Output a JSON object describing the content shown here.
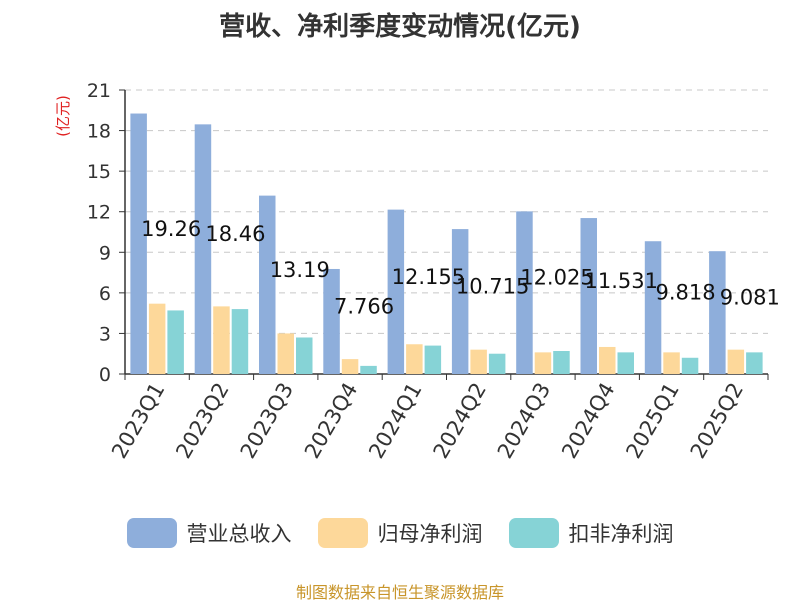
{
  "chart_data": {
    "type": "bar",
    "title": "营收、净利季度变动情况(亿元)",
    "ylabel": "(亿元)",
    "ylim": [
      0,
      21
    ],
    "yticks": [
      0,
      3,
      6,
      9,
      12,
      15,
      18,
      21
    ],
    "grid": true,
    "legend_position": "bottom",
    "categories": [
      "2023Q1",
      "2023Q2",
      "2023Q3",
      "2023Q4",
      "2024Q1",
      "2024Q2",
      "2024Q3",
      "2024Q4",
      "2025Q1",
      "2025Q2"
    ],
    "series": [
      {
        "name": "营业总收入",
        "color": "#8eaedb",
        "values": [
          19.26,
          18.46,
          13.19,
          7.766,
          12.155,
          10.715,
          12.025,
          11.531,
          9.818,
          9.081
        ],
        "labels": [
          "19.26",
          "18.46",
          "13.19",
          "7.766",
          "12.155",
          "10.715",
          "12.025",
          "11.531",
          "9.818",
          "9.081"
        ]
      },
      {
        "name": "归母净利润",
        "color": "#fdd89a",
        "values": [
          5.2,
          5.0,
          3.0,
          1.1,
          2.2,
          1.8,
          1.6,
          2.0,
          1.6,
          1.8
        ]
      },
      {
        "name": "扣非净利润",
        "color": "#86d3d6",
        "values": [
          4.7,
          4.8,
          2.7,
          0.6,
          2.1,
          1.5,
          1.7,
          1.6,
          1.2,
          1.6
        ]
      }
    ]
  },
  "footer": {
    "source": "制图数据来自恒生聚源数据库"
  }
}
